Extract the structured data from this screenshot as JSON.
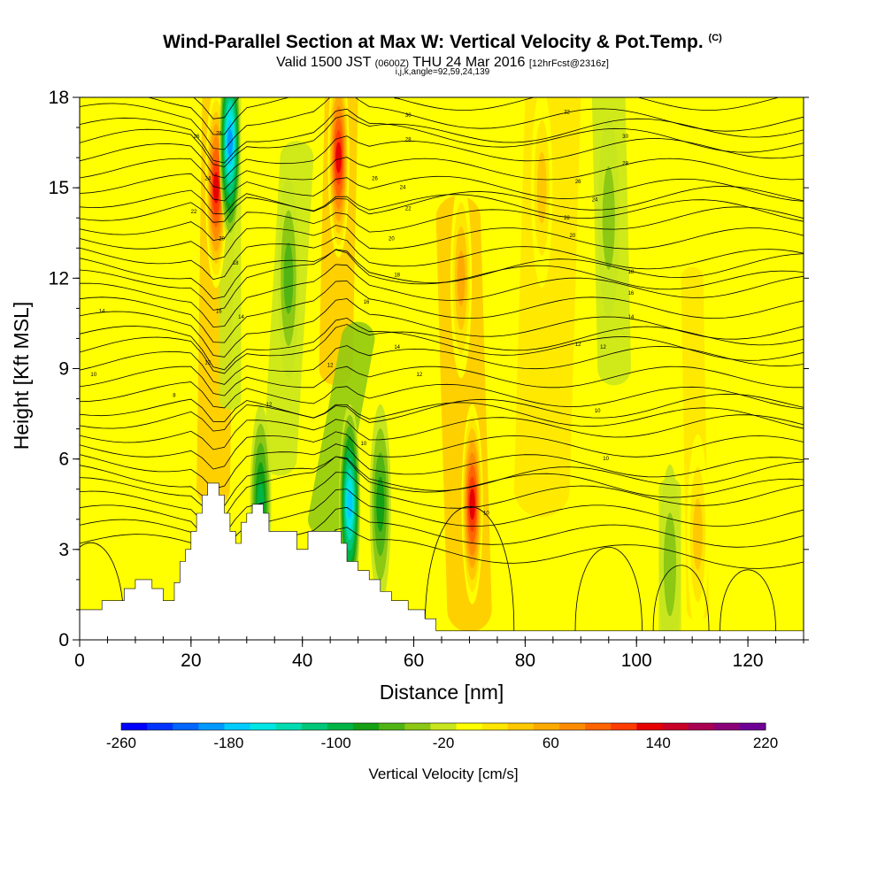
{
  "chart_data": {
    "type": "heatmap",
    "title": "Wind-Parallel Section at Max W: Vertical Velocity & Pot.Temp.",
    "title_mark": "(C)",
    "subtitle_main": "Valid 1500 JST",
    "subtitle_utc": "(0600Z)",
    "subtitle_date": "THU 24 Mar 2016",
    "subtitle_run": "[12hrFcst@2316z]",
    "subtitle2": "i,j,k,angle=92,59,24,139",
    "xlabel": "Distance [nm]",
    "ylabel": "Height [Kft MSL]",
    "xlim": [
      0,
      130
    ],
    "ylim": [
      0,
      18
    ],
    "x_ticks": [
      "0",
      "20",
      "40",
      "60",
      "80",
      "100",
      "120"
    ],
    "y_ticks": [
      "0",
      "3",
      "6",
      "9",
      "12",
      "15",
      "18"
    ],
    "colorbar": {
      "label": "Vertical Velocity [cm/s]",
      "min": -260,
      "max": 220,
      "step": 20,
      "tick_labels": [
        "-260",
        "-180",
        "-100",
        "-20",
        "60",
        "140",
        "220"
      ],
      "colors": [
        "#0000ff",
        "#0033ff",
        "#0066ff",
        "#0099ff",
        "#00ccff",
        "#00e5e5",
        "#00dcb0",
        "#00c878",
        "#00b446",
        "#14a014",
        "#50b414",
        "#8cc814",
        "#c8e61e",
        "#ffff00",
        "#ffe600",
        "#ffc800",
        "#ffaa00",
        "#ff8c00",
        "#ff6400",
        "#ff3c00",
        "#e60000",
        "#c80028",
        "#aa0050",
        "#8c0078",
        "#6e0096"
      ]
    },
    "terrain": [
      [
        0,
        1
      ],
      [
        4,
        1
      ],
      [
        4,
        1.3
      ],
      [
        8,
        1.3
      ],
      [
        8,
        1.7
      ],
      [
        10,
        1.7
      ],
      [
        10,
        2
      ],
      [
        13,
        2
      ],
      [
        13,
        1.7
      ],
      [
        15,
        1.7
      ],
      [
        15,
        1.3
      ],
      [
        17,
        1.3
      ],
      [
        17,
        1.9
      ],
      [
        18,
        1.9
      ],
      [
        18,
        2.6
      ],
      [
        19,
        2.6
      ],
      [
        19,
        3
      ],
      [
        20,
        3
      ],
      [
        20,
        3.6
      ],
      [
        21,
        3.6
      ],
      [
        21,
        4.2
      ],
      [
        22,
        4.2
      ],
      [
        22,
        4.8
      ],
      [
        23,
        4.8
      ],
      [
        23,
        5.2
      ],
      [
        25,
        5.2
      ],
      [
        25,
        4.8
      ],
      [
        26,
        4.8
      ],
      [
        26,
        4.2
      ],
      [
        27,
        4.2
      ],
      [
        27,
        3.6
      ],
      [
        28,
        3.6
      ],
      [
        28,
        3.2
      ],
      [
        29,
        3.2
      ],
      [
        29,
        3.9
      ],
      [
        30,
        3.9
      ],
      [
        30,
        4.2
      ],
      [
        31,
        4.2
      ],
      [
        31,
        4.5
      ],
      [
        33,
        4.5
      ],
      [
        33,
        4.2
      ],
      [
        34,
        4.2
      ],
      [
        34,
        3.6
      ],
      [
        39,
        3.6
      ],
      [
        39,
        3
      ],
      [
        41,
        3
      ],
      [
        41,
        3.6
      ],
      [
        47,
        3.6
      ],
      [
        47,
        3.2
      ],
      [
        48,
        3.2
      ],
      [
        48,
        2.6
      ],
      [
        50,
        2.6
      ],
      [
        50,
        2.3
      ],
      [
        52,
        2.3
      ],
      [
        52,
        2
      ],
      [
        54,
        2
      ],
      [
        54,
        1.6
      ],
      [
        56,
        1.6
      ],
      [
        56,
        1.3
      ],
      [
        59,
        1.3
      ],
      [
        59,
        1
      ],
      [
        62,
        1
      ],
      [
        62,
        0.7
      ],
      [
        64,
        0.7
      ],
      [
        64,
        0.3
      ],
      [
        130,
        0.3
      ]
    ],
    "updraft_cores": [
      {
        "x": 24.5,
        "z": 15,
        "w": 160
      },
      {
        "x": 46.5,
        "z": 16,
        "w": 160
      },
      {
        "x": 70.5,
        "z": 4.5,
        "w": 160
      },
      {
        "x": 68.5,
        "z": 12,
        "w": 80
      },
      {
        "x": 83,
        "z": 15,
        "w": 60
      },
      {
        "x": 111,
        "z": 3.5,
        "w": 60
      }
    ],
    "downdraft_cores": [
      {
        "x": 27,
        "z": 16.5,
        "w": -200
      },
      {
        "x": 48.5,
        "z": 4.5,
        "w": -180
      },
      {
        "x": 32.5,
        "z": 4.5,
        "w": -100
      },
      {
        "x": 54,
        "z": 4.5,
        "w": -80
      },
      {
        "x": 37.5,
        "z": 12,
        "w": -60
      },
      {
        "x": 95,
        "z": 14,
        "w": -40
      },
      {
        "x": 106,
        "z": 2.5,
        "w": -40
      }
    ],
    "theta_labels": [
      {
        "x": 4,
        "z": 10.9,
        "text": "14"
      },
      {
        "x": 2.5,
        "z": 8.8,
        "text": "10"
      },
      {
        "x": 17,
        "z": 8.1,
        "text": "8"
      },
      {
        "x": 21,
        "z": 16.7,
        "text": "26"
      },
      {
        "x": 20.5,
        "z": 14.2,
        "text": "22"
      },
      {
        "x": 23,
        "z": 15.3,
        "text": "24"
      },
      {
        "x": 25,
        "z": 16.8,
        "text": "28"
      },
      {
        "x": 25.5,
        "z": 13.3,
        "text": "20"
      },
      {
        "x": 28,
        "z": 12.5,
        "text": "18"
      },
      {
        "x": 25,
        "z": 10.9,
        "text": "16"
      },
      {
        "x": 29,
        "z": 10.7,
        "text": "14"
      },
      {
        "x": 23,
        "z": 9.2,
        "text": "12"
      },
      {
        "x": 34,
        "z": 7.8,
        "text": "12"
      },
      {
        "x": 45,
        "z": 9.1,
        "text": "12"
      },
      {
        "x": 51,
        "z": 6.5,
        "text": "10"
      },
      {
        "x": 57,
        "z": 18,
        "text": "32"
      },
      {
        "x": 59,
        "z": 17.4,
        "text": "30"
      },
      {
        "x": 59,
        "z": 16.6,
        "text": "28"
      },
      {
        "x": 53,
        "z": 15.3,
        "text": "26"
      },
      {
        "x": 58,
        "z": 15,
        "text": "24"
      },
      {
        "x": 59,
        "z": 14.3,
        "text": "22"
      },
      {
        "x": 56,
        "z": 13.3,
        "text": "20"
      },
      {
        "x": 57,
        "z": 12.1,
        "text": "18"
      },
      {
        "x": 51.5,
        "z": 11.2,
        "text": "16"
      },
      {
        "x": 57,
        "z": 9.7,
        "text": "14"
      },
      {
        "x": 61,
        "z": 8.8,
        "text": "12"
      },
      {
        "x": 73,
        "z": 4.2,
        "text": "10"
      },
      {
        "x": 87.5,
        "z": 17.5,
        "text": "32"
      },
      {
        "x": 98,
        "z": 16.7,
        "text": "30"
      },
      {
        "x": 98,
        "z": 15.8,
        "text": "28"
      },
      {
        "x": 89.5,
        "z": 15.2,
        "text": "26"
      },
      {
        "x": 92.5,
        "z": 14.6,
        "text": "24"
      },
      {
        "x": 87.5,
        "z": 14,
        "text": "22"
      },
      {
        "x": 88.5,
        "z": 13.4,
        "text": "20"
      },
      {
        "x": 99,
        "z": 12.2,
        "text": "18"
      },
      {
        "x": 99,
        "z": 11.5,
        "text": "16"
      },
      {
        "x": 99,
        "z": 10.7,
        "text": "14"
      },
      {
        "x": 89.5,
        "z": 9.8,
        "text": "12"
      },
      {
        "x": 94,
        "z": 9.7,
        "text": "12"
      },
      {
        "x": 93,
        "z": 7.6,
        "text": "10"
      },
      {
        "x": 94.5,
        "z": 6,
        "text": "10"
      }
    ]
  }
}
